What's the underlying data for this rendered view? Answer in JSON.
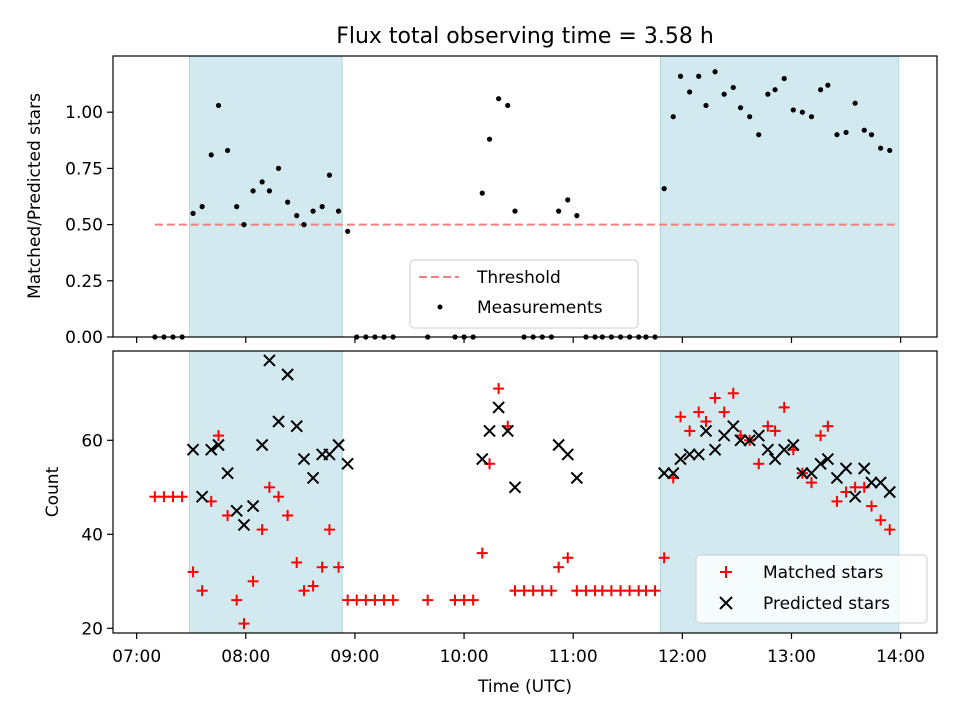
{
  "chart_data": [
    {
      "type": "scatter",
      "title": "Flux total observing time = 3.58 h",
      "ylabel": "Matched/Predicted stars",
      "ylim": [
        0,
        1.25
      ],
      "xlim": [
        "06:47",
        "14:20"
      ],
      "yticks": [
        0.0,
        0.25,
        0.5,
        0.75,
        1.0
      ],
      "ytick_labels": [
        "0.00",
        "0.25",
        "0.50",
        "0.75",
        "1.00"
      ],
      "shaded_intervals": [
        [
          "07:29",
          "08:53"
        ],
        [
          "11:48",
          "13:59"
        ]
      ],
      "shade_color": "#d2e9f0",
      "threshold": {
        "name": "Threshold",
        "y": 0.5,
        "x_range": [
          "07:10",
          "13:59"
        ],
        "color": "#f08080"
      },
      "legend": {
        "placement": "lower center",
        "entries": [
          "Threshold",
          "Measurements"
        ]
      },
      "series": [
        {
          "name": "Measurements",
          "marker": "dot",
          "color": "#000000",
          "points": [
            [
              "07:10",
              0
            ],
            [
              "07:15",
              0
            ],
            [
              "07:20",
              0
            ],
            [
              "07:25",
              0
            ],
            [
              "07:31",
              0.55
            ],
            [
              "07:36",
              0.58
            ],
            [
              "07:41",
              0.81
            ],
            [
              "07:45",
              1.03
            ],
            [
              "07:50",
              0.83
            ],
            [
              "07:55",
              0.58
            ],
            [
              "07:59",
              0.5
            ],
            [
              "08:04",
              0.65
            ],
            [
              "08:09",
              0.69
            ],
            [
              "08:13",
              0.65
            ],
            [
              "08:18",
              0.75
            ],
            [
              "08:23",
              0.6
            ],
            [
              "08:28",
              0.54
            ],
            [
              "08:32",
              0.5
            ],
            [
              "08:37",
              0.56
            ],
            [
              "08:42",
              0.58
            ],
            [
              "08:46",
              0.72
            ],
            [
              "08:51",
              0.56
            ],
            [
              "08:56",
              0.47
            ],
            [
              "09:01",
              0
            ],
            [
              "09:06",
              0
            ],
            [
              "09:11",
              0
            ],
            [
              "09:16",
              0
            ],
            [
              "09:21",
              0
            ],
            [
              "09:40",
              0
            ],
            [
              "09:55",
              0
            ],
            [
              "10:00",
              0
            ],
            [
              "10:05",
              0
            ],
            [
              "10:10",
              0.64
            ],
            [
              "10:14",
              0.88
            ],
            [
              "10:19",
              1.06
            ],
            [
              "10:24",
              1.03
            ],
            [
              "10:28",
              0.56
            ],
            [
              "10:33",
              0
            ],
            [
              "10:38",
              0
            ],
            [
              "10:43",
              0
            ],
            [
              "10:48",
              0
            ],
            [
              "10:52",
              0.56
            ],
            [
              "10:57",
              0.61
            ],
            [
              "11:02",
              0.54
            ],
            [
              "11:07",
              0
            ],
            [
              "11:12",
              0
            ],
            [
              "11:16",
              0
            ],
            [
              "11:21",
              0
            ],
            [
              "11:26",
              0
            ],
            [
              "11:31",
              0
            ],
            [
              "11:36",
              0
            ],
            [
              "11:40",
              0
            ],
            [
              "11:45",
              0
            ],
            [
              "11:50",
              0.66
            ],
            [
              "11:55",
              0.98
            ],
            [
              "11:59",
              1.16
            ],
            [
              "12:04",
              1.09
            ],
            [
              "12:09",
              1.16
            ],
            [
              "12:13",
              1.03
            ],
            [
              "12:18",
              1.18
            ],
            [
              "12:23",
              1.08
            ],
            [
              "12:28",
              1.11
            ],
            [
              "12:32",
              1.02
            ],
            [
              "12:37",
              0.98
            ],
            [
              "12:42",
              0.9
            ],
            [
              "12:47",
              1.08
            ],
            [
              "12:51",
              1.1
            ],
            [
              "12:56",
              1.15
            ],
            [
              "13:01",
              1.01
            ],
            [
              "13:06",
              1.0
            ],
            [
              "13:11",
              0.98
            ],
            [
              "13:16",
              1.1
            ],
            [
              "13:20",
              1.12
            ],
            [
              "13:25",
              0.9
            ],
            [
              "13:30",
              0.91
            ],
            [
              "13:35",
              1.04
            ],
            [
              "13:40",
              0.92
            ],
            [
              "13:44",
              0.9
            ],
            [
              "13:49",
              0.84
            ],
            [
              "13:54",
              0.83
            ]
          ]
        }
      ]
    },
    {
      "type": "scatter",
      "xlabel": "Time (UTC)",
      "ylabel": "Count",
      "ylim": [
        19,
        79
      ],
      "xlim": [
        "06:47",
        "14:20"
      ],
      "yticks": [
        20,
        40,
        60
      ],
      "ytick_labels": [
        "20",
        "40",
        "60"
      ],
      "xticks": [
        "07:00",
        "08:00",
        "09:00",
        "10:00",
        "11:00",
        "12:00",
        "13:00",
        "14:00"
      ],
      "xtick_labels": [
        "07:00",
        "08:00",
        "09:00",
        "10:00",
        "11:00",
        "12:00",
        "13:00",
        "14:00"
      ],
      "shaded_intervals": [
        [
          "07:29",
          "08:53"
        ],
        [
          "11:48",
          "13:59"
        ]
      ],
      "shade_color": "#d2e9f0",
      "legend": {
        "placement": "lower right",
        "entries": [
          "Matched stars",
          "Predicted stars"
        ]
      },
      "series": [
        {
          "name": "Matched stars",
          "marker": "plus",
          "color": "#ff0000",
          "points": [
            [
              "07:10",
              48
            ],
            [
              "07:15",
              48
            ],
            [
              "07:20",
              48
            ],
            [
              "07:25",
              48
            ],
            [
              "07:31",
              32
            ],
            [
              "07:36",
              28
            ],
            [
              "07:41",
              47
            ],
            [
              "07:45",
              61
            ],
            [
              "07:50",
              44
            ],
            [
              "07:55",
              26
            ],
            [
              "07:59",
              21
            ],
            [
              "08:04",
              30
            ],
            [
              "08:09",
              41
            ],
            [
              "08:13",
              50
            ],
            [
              "08:18",
              48
            ],
            [
              "08:23",
              44
            ],
            [
              "08:28",
              34
            ],
            [
              "08:32",
              28
            ],
            [
              "08:37",
              29
            ],
            [
              "08:42",
              33
            ],
            [
              "08:46",
              41
            ],
            [
              "08:51",
              33
            ],
            [
              "08:56",
              26
            ],
            [
              "09:01",
              26
            ],
            [
              "09:06",
              26
            ],
            [
              "09:11",
              26
            ],
            [
              "09:16",
              26
            ],
            [
              "09:21",
              26
            ],
            [
              "09:40",
              26
            ],
            [
              "09:55",
              26
            ],
            [
              "10:00",
              26
            ],
            [
              "10:05",
              26
            ],
            [
              "10:10",
              36
            ],
            [
              "10:14",
              55
            ],
            [
              "10:19",
              71
            ],
            [
              "10:24",
              63
            ],
            [
              "10:28",
              28
            ],
            [
              "10:33",
              28
            ],
            [
              "10:38",
              28
            ],
            [
              "10:43",
              28
            ],
            [
              "10:48",
              28
            ],
            [
              "10:52",
              33
            ],
            [
              "10:57",
              35
            ],
            [
              "11:02",
              28
            ],
            [
              "11:07",
              28
            ],
            [
              "11:12",
              28
            ],
            [
              "11:16",
              28
            ],
            [
              "11:21",
              28
            ],
            [
              "11:26",
              28
            ],
            [
              "11:31",
              28
            ],
            [
              "11:36",
              28
            ],
            [
              "11:40",
              28
            ],
            [
              "11:45",
              28
            ],
            [
              "11:50",
              35
            ],
            [
              "11:55",
              52
            ],
            [
              "11:59",
              65
            ],
            [
              "12:04",
              62
            ],
            [
              "12:09",
              66
            ],
            [
              "12:13",
              64
            ],
            [
              "12:18",
              69
            ],
            [
              "12:23",
              66
            ],
            [
              "12:28",
              70
            ],
            [
              "12:32",
              61
            ],
            [
              "12:37",
              60
            ],
            [
              "12:42",
              55
            ],
            [
              "12:47",
              63
            ],
            [
              "12:51",
              62
            ],
            [
              "12:56",
              67
            ],
            [
              "13:01",
              58
            ],
            [
              "13:06",
              53
            ],
            [
              "13:11",
              51
            ],
            [
              "13:16",
              61
            ],
            [
              "13:20",
              63
            ],
            [
              "13:25",
              47
            ],
            [
              "13:30",
              49
            ],
            [
              "13:35",
              50
            ],
            [
              "13:40",
              50
            ],
            [
              "13:44",
              46
            ],
            [
              "13:49",
              43
            ],
            [
              "13:54",
              41
            ]
          ]
        },
        {
          "name": "Predicted stars",
          "marker": "x",
          "color": "#000000",
          "points": [
            [
              "07:31",
              58
            ],
            [
              "07:36",
              48
            ],
            [
              "07:41",
              58
            ],
            [
              "07:45",
              59
            ],
            [
              "07:50",
              53
            ],
            [
              "07:55",
              45
            ],
            [
              "07:59",
              42
            ],
            [
              "08:04",
              46
            ],
            [
              "08:09",
              59
            ],
            [
              "08:13",
              77
            ],
            [
              "08:18",
              64
            ],
            [
              "08:23",
              74
            ],
            [
              "08:28",
              63
            ],
            [
              "08:32",
              56
            ],
            [
              "08:37",
              52
            ],
            [
              "08:42",
              57
            ],
            [
              "08:46",
              57
            ],
            [
              "08:51",
              59
            ],
            [
              "08:56",
              55
            ],
            [
              "10:10",
              56
            ],
            [
              "10:14",
              62
            ],
            [
              "10:19",
              67
            ],
            [
              "10:24",
              62
            ],
            [
              "10:28",
              50
            ],
            [
              "10:52",
              59
            ],
            [
              "10:57",
              57
            ],
            [
              "11:02",
              52
            ],
            [
              "11:50",
              53
            ],
            [
              "11:55",
              53
            ],
            [
              "11:59",
              56
            ],
            [
              "12:04",
              57
            ],
            [
              "12:09",
              57
            ],
            [
              "12:13",
              62
            ],
            [
              "12:18",
              58
            ],
            [
              "12:23",
              61
            ],
            [
              "12:28",
              63
            ],
            [
              "12:32",
              60
            ],
            [
              "12:37",
              60
            ],
            [
              "12:42",
              61
            ],
            [
              "12:47",
              58
            ],
            [
              "12:51",
              56
            ],
            [
              "12:56",
              58
            ],
            [
              "13:01",
              59
            ],
            [
              "13:06",
              53
            ],
            [
              "13:11",
              53
            ],
            [
              "13:16",
              55
            ],
            [
              "13:20",
              56
            ],
            [
              "13:25",
              52
            ],
            [
              "13:30",
              54
            ],
            [
              "13:35",
              48
            ],
            [
              "13:40",
              54
            ],
            [
              "13:44",
              51
            ],
            [
              "13:49",
              51
            ],
            [
              "13:54",
              49
            ]
          ]
        }
      ]
    }
  ]
}
